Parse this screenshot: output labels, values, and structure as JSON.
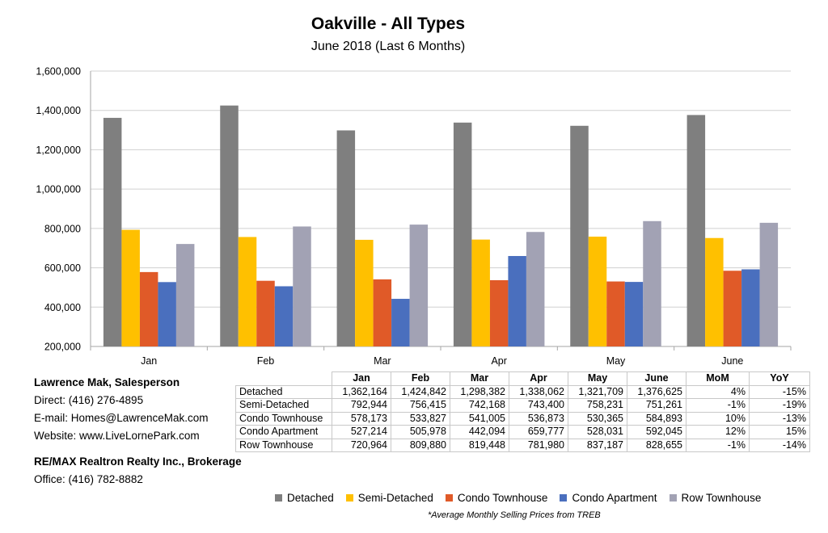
{
  "chart_data": {
    "type": "bar",
    "title": "Oakville - All Types",
    "subtitle": "June 2018 (Last 6 Months)",
    "categories": [
      "Jan",
      "Feb",
      "Mar",
      "Apr",
      "May",
      "June"
    ],
    "ylim": [
      200000,
      1600000
    ],
    "yticks": [
      200000,
      400000,
      600000,
      800000,
      1000000,
      1200000,
      1400000,
      1600000
    ],
    "ytick_labels": [
      "200,000",
      "400,000",
      "600,000",
      "800,000",
      "1,000,000",
      "1,200,000",
      "1,400,000",
      "1,600,000"
    ],
    "grid": true,
    "legend_position": "bottom",
    "series": [
      {
        "name": "Detached",
        "color": "#7f7f7f",
        "values": [
          1362164,
          1424842,
          1298382,
          1338062,
          1321709,
          1376625
        ]
      },
      {
        "name": "Semi-Detached",
        "color": "#ffc000",
        "values": [
          792944,
          756415,
          742168,
          743400,
          758231,
          751261
        ]
      },
      {
        "name": "Condo Townhouse",
        "color": "#e05a28",
        "values": [
          578173,
          533827,
          541005,
          536873,
          530365,
          584893
        ]
      },
      {
        "name": "Condo Apartment",
        "color": "#4a6fbe",
        "values": [
          527214,
          505978,
          442094,
          659777,
          528031,
          592045
        ]
      },
      {
        "name": "Row Townhouse",
        "color": "#a2a2b4",
        "values": [
          720964,
          809880,
          819448,
          781980,
          837187,
          828655
        ]
      }
    ]
  },
  "table": {
    "headers": [
      "Jan",
      "Feb",
      "Mar",
      "Apr",
      "May",
      "June",
      "MoM",
      "YoY"
    ],
    "rows": [
      {
        "label": "Detached",
        "cells": [
          "1,362,164",
          "1,424,842",
          "1,298,382",
          "1,338,062",
          "1,321,709",
          "1,376,625",
          "4%",
          "-15%"
        ]
      },
      {
        "label": "Semi-Detached",
        "cells": [
          "792,944",
          "756,415",
          "742,168",
          "743,400",
          "758,231",
          "751,261",
          "-1%",
          "-19%"
        ]
      },
      {
        "label": "Condo Townhouse",
        "cells": [
          "578,173",
          "533,827",
          "541,005",
          "536,873",
          "530,365",
          "584,893",
          "10%",
          "-13%"
        ]
      },
      {
        "label": "Condo Apartment",
        "cells": [
          "527,214",
          "505,978",
          "442,094",
          "659,777",
          "528,031",
          "592,045",
          "12%",
          "15%"
        ]
      },
      {
        "label": "Row Townhouse",
        "cells": [
          "720,964",
          "809,880",
          "819,448",
          "781,980",
          "837,187",
          "828,655",
          "-1%",
          "-14%"
        ]
      }
    ]
  },
  "contact": {
    "name": "Lawrence Mak, Salesperson",
    "direct": "Direct:  (416) 276-4895",
    "email": "E-mail:  Homes@LawrenceMak.com",
    "website": "Website: www.LiveLornePark.com",
    "brokerage": "RE/MAX Realtron Realty Inc., Brokerage",
    "office": "Office: (416) 782-8882"
  },
  "footnote": "*Average Monthly Selling Prices  from TREB"
}
